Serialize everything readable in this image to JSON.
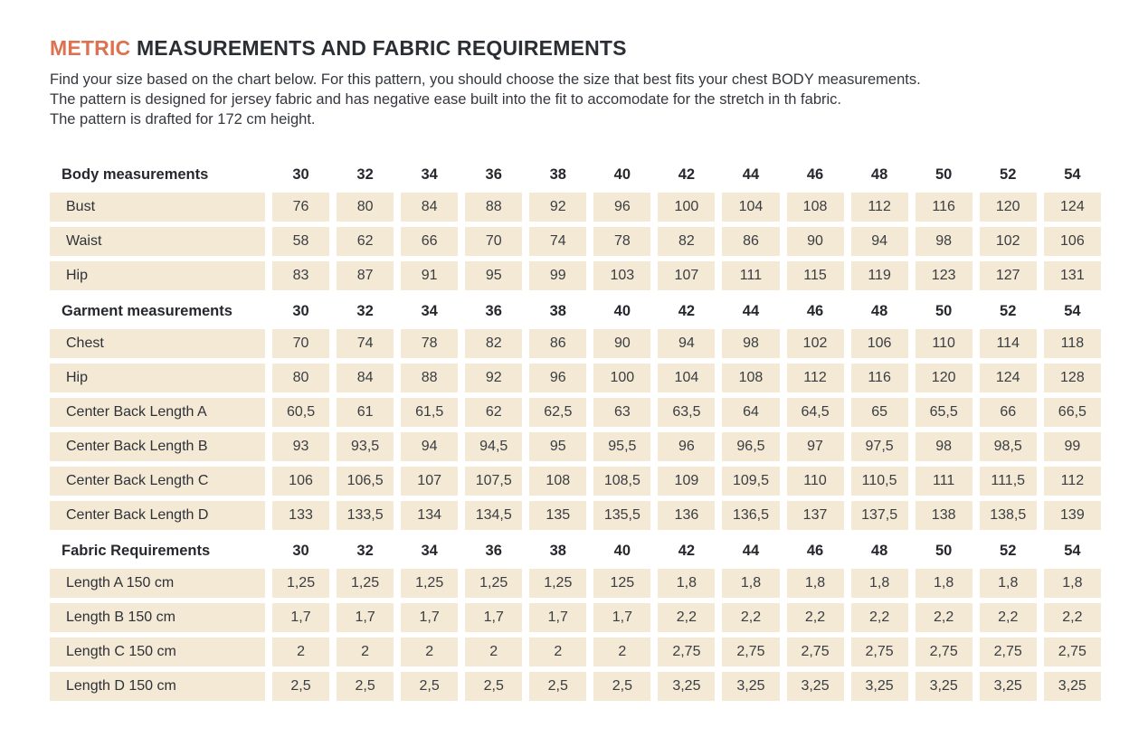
{
  "page": {
    "title": {
      "highlight": "METRIC",
      "rest": " MEASUREMENTS AND FABRIC REQUIREMENTS"
    },
    "intro_lines": [
      "Find your size based on the chart below. For this pattern, you should choose the size that best fits your chest BODY measurements.",
      "The pattern is designed for jersey fabric and has negative ease built into the fit to accomodate for the stretch in th fabric.",
      "The pattern is drafted for 172 cm height."
    ]
  },
  "colors": {
    "accent_orange": "#dd7150",
    "cell_beige": "#f3e9d5",
    "text_dark": "#2e3137"
  },
  "table": {
    "sizes": [
      "30",
      "32",
      "34",
      "36",
      "38",
      "40",
      "42",
      "44",
      "46",
      "48",
      "50",
      "52",
      "54"
    ],
    "sections": [
      {
        "header": "Body measurements",
        "rows": [
          {
            "label": "Bust",
            "values": [
              "76",
              "80",
              "84",
              "88",
              "92",
              "96",
              "100",
              "104",
              "108",
              "112",
              "116",
              "120",
              "124"
            ]
          },
          {
            "label": "Waist",
            "values": [
              "58",
              "62",
              "66",
              "70",
              "74",
              "78",
              "82",
              "86",
              "90",
              "94",
              "98",
              "102",
              "106"
            ]
          },
          {
            "label": "Hip",
            "values": [
              "83",
              "87",
              "91",
              "95",
              "99",
              "103",
              "107",
              "111",
              "115",
              "119",
              "123",
              "127",
              "131"
            ]
          }
        ]
      },
      {
        "header": "Garment measurements",
        "rows": [
          {
            "label": "Chest",
            "values": [
              "70",
              "74",
              "78",
              "82",
              "86",
              "90",
              "94",
              "98",
              "102",
              "106",
              "110",
              "114",
              "118"
            ]
          },
          {
            "label": "Hip",
            "values": [
              "80",
              "84",
              "88",
              "92",
              "96",
              "100",
              "104",
              "108",
              "112",
              "116",
              "120",
              "124",
              "128"
            ]
          },
          {
            "label": "Center Back Length A",
            "values": [
              "60,5",
              "61",
              "61,5",
              "62",
              "62,5",
              "63",
              "63,5",
              "64",
              "64,5",
              "65",
              "65,5",
              "66",
              "66,5"
            ]
          },
          {
            "label": "Center Back Length B",
            "values": [
              "93",
              "93,5",
              "94",
              "94,5",
              "95",
              "95,5",
              "96",
              "96,5",
              "97",
              "97,5",
              "98",
              "98,5",
              "99"
            ]
          },
          {
            "label": "Center Back Length C",
            "values": [
              "106",
              "106,5",
              "107",
              "107,5",
              "108",
              "108,5",
              "109",
              "109,5",
              "110",
              "110,5",
              "111",
              "111,5",
              "112"
            ]
          },
          {
            "label": "Center Back Length D",
            "values": [
              "133",
              "133,5",
              "134",
              "134,5",
              "135",
              "135,5",
              "136",
              "136,5",
              "137",
              "137,5",
              "138",
              "138,5",
              "139"
            ]
          }
        ]
      },
      {
        "header": "Fabric Requirements",
        "rows": [
          {
            "label": "Length A 150 cm",
            "values": [
              "1,25",
              "1,25",
              "1,25",
              "1,25",
              "1,25",
              "125",
              "1,8",
              "1,8",
              "1,8",
              "1,8",
              "1,8",
              "1,8",
              "1,8"
            ]
          },
          {
            "label": "Length B 150 cm",
            "values": [
              "1,7",
              "1,7",
              "1,7",
              "1,7",
              "1,7",
              "1,7",
              "2,2",
              "2,2",
              "2,2",
              "2,2",
              "2,2",
              "2,2",
              "2,2"
            ]
          },
          {
            "label": "Length C 150 cm",
            "values": [
              "2",
              "2",
              "2",
              "2",
              "2",
              "2",
              "2,75",
              "2,75",
              "2,75",
              "2,75",
              "2,75",
              "2,75",
              "2,75"
            ]
          },
          {
            "label": "Length D 150 cm",
            "values": [
              "2,5",
              "2,5",
              "2,5",
              "2,5",
              "2,5",
              "2,5",
              "3,25",
              "3,25",
              "3,25",
              "3,25",
              "3,25",
              "3,25",
              "3,25"
            ]
          }
        ]
      }
    ]
  }
}
